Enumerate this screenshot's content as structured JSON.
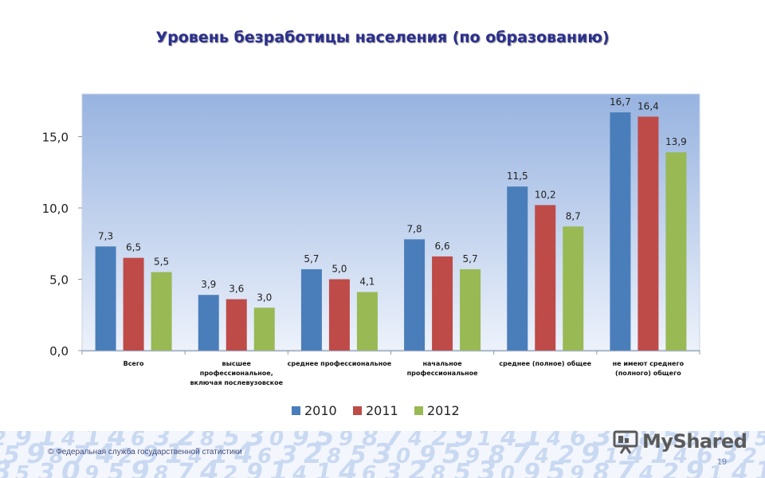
{
  "slide": {
    "title": "Уровень безработицы населения (по образованию)",
    "copyright": "© Федеральная служба государственной статистики",
    "page_number": "19",
    "logo_text": "MyShared"
  },
  "colors": {
    "title": "#2b2f8e",
    "series_2010": "#4a7ebb",
    "series_2011": "#be4b48",
    "series_2012": "#98b954",
    "plot_top": "#97b3e0",
    "plot_bottom": "#edf2fb"
  },
  "chart_data": {
    "type": "bar",
    "categories": [
      [
        "Всего"
      ],
      [
        "высшее",
        "профессиональное,",
        "включая послевузовское"
      ],
      [
        "среднее профессиональное"
      ],
      [
        "начальное",
        "профессиональное"
      ],
      [
        "среднее (полное) общее"
      ],
      [
        "не имеют среднего",
        "(полного) общего"
      ]
    ],
    "series": [
      {
        "name": "2010",
        "values": [
          7.3,
          3.9,
          5.7,
          7.8,
          11.5,
          16.7
        ],
        "labels": [
          "7,3",
          "3,9",
          "5,7",
          "7,8",
          "11,5",
          "16,7"
        ]
      },
      {
        "name": "2011",
        "values": [
          6.5,
          3.6,
          5.0,
          6.6,
          10.2,
          16.4
        ],
        "labels": [
          "6,5",
          "3,6",
          "5,0",
          "6,6",
          "10,2",
          "16,4"
        ]
      },
      {
        "name": "2012",
        "values": [
          5.5,
          3.0,
          4.1,
          5.7,
          8.7,
          13.9
        ],
        "labels": [
          "5,5",
          "3,0",
          "4,1",
          "5,7",
          "8,7",
          "13,9"
        ]
      }
    ],
    "y_ticks": [
      "0,0",
      "5,0",
      "10,0",
      "15,0"
    ],
    "y_tick_values": [
      0,
      5,
      10,
      15
    ],
    "ylim": [
      0,
      18
    ],
    "grid": false,
    "legend": "bottom-center"
  }
}
